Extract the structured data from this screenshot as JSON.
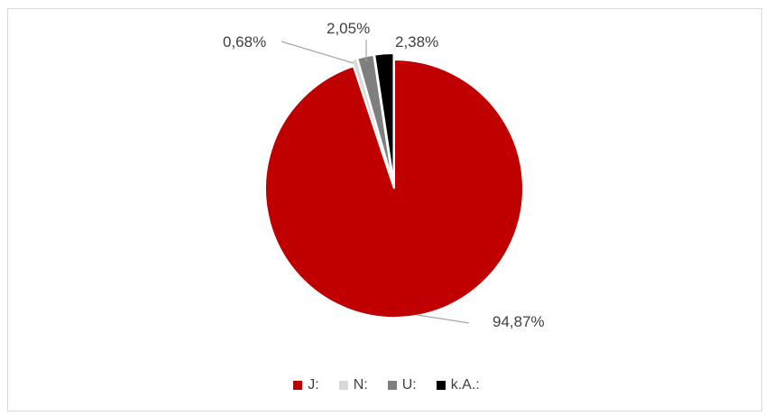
{
  "chart_data": {
    "type": "pie",
    "categories": [
      "J:",
      "N:",
      "U:",
      "k.A.:"
    ],
    "values": [
      94.87,
      0.68,
      2.05,
      2.38
    ],
    "data_labels": [
      "94,87%",
      "0,68%",
      "2,05%",
      "2,38%"
    ],
    "colors": [
      "#c00000",
      "#d9d9d9",
      "#7f7f7f",
      "#000000"
    ],
    "legend_position": "bottom",
    "start_angle_deg": 0,
    "direction": "clockwise"
  }
}
